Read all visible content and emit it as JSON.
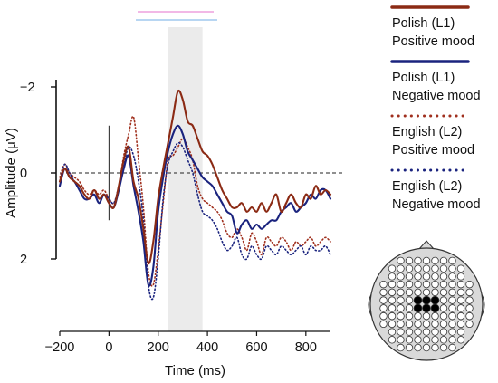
{
  "chart_data": {
    "type": "line",
    "xlabel": "Time (ms)",
    "ylabel": "Amplitude (μV)",
    "xlim": [
      -200,
      900
    ],
    "ylim": [
      2,
      -2
    ],
    "y_inverted": true,
    "x_ticks": [
      -200,
      0,
      200,
      400,
      600,
      800
    ],
    "y_ticks": [
      -2,
      0,
      2
    ],
    "x_tick_labels": [
      "−200",
      "0",
      "200",
      "400",
      "600",
      "800"
    ],
    "y_tick_labels": [
      "−2",
      "0",
      "2"
    ],
    "shaded_window": [
      240,
      380
    ],
    "shaded_color": "#ebebeb",
    "zero_line": "dashed",
    "grid": false,
    "legend_position": "right",
    "x": [
      -200,
      -180,
      -160,
      -140,
      -120,
      -100,
      -80,
      -60,
      -40,
      -20,
      0,
      20,
      40,
      60,
      80,
      100,
      120,
      140,
      160,
      180,
      200,
      220,
      240,
      260,
      280,
      300,
      320,
      340,
      360,
      380,
      400,
      420,
      440,
      460,
      480,
      500,
      520,
      540,
      560,
      580,
      600,
      620,
      640,
      660,
      680,
      700,
      720,
      740,
      760,
      780,
      800,
      820,
      840,
      860,
      880,
      900
    ],
    "series": [
      {
        "name_lines": [
          "Polish (L1)",
          "Positive mood"
        ],
        "color": "#8b2a14",
        "dash": "solid",
        "values": [
          0.2,
          -0.1,
          0.1,
          0.2,
          0.3,
          0.5,
          0.6,
          0.4,
          0.6,
          0.5,
          0.7,
          0.8,
          0.3,
          -0.3,
          -0.6,
          0.2,
          0.6,
          1.3,
          2.1,
          1.6,
          0.6,
          -0.1,
          -0.7,
          -1.3,
          -1.9,
          -1.7,
          -1.2,
          -1.1,
          -0.8,
          -0.5,
          -0.4,
          -0.2,
          0.1,
          0.4,
          0.6,
          0.8,
          0.8,
          0.7,
          0.9,
          0.8,
          0.9,
          0.7,
          0.9,
          0.7,
          0.5,
          0.9,
          0.7,
          0.5,
          0.7,
          0.8,
          0.5,
          0.6,
          0.3,
          0.5,
          0.4,
          0.5
        ]
      },
      {
        "name_lines": [
          "Polish (L1)",
          "Negative mood"
        ],
        "color": "#1a237e",
        "dash": "solid",
        "values": [
          0.3,
          -0.1,
          0.1,
          0.2,
          0.4,
          0.6,
          0.6,
          0.5,
          0.7,
          0.5,
          0.7,
          0.8,
          0.4,
          -0.1,
          -0.4,
          0.3,
          0.9,
          1.6,
          2.6,
          2.2,
          0.9,
          0.1,
          -0.5,
          -0.9,
          -1.1,
          -0.9,
          -0.5,
          -0.3,
          -0.1,
          0.1,
          0.2,
          0.3,
          0.5,
          0.7,
          0.9,
          1.0,
          1.4,
          1.2,
          1.1,
          1.3,
          1.2,
          1.3,
          1.2,
          1.1,
          1.1,
          0.9,
          0.8,
          0.7,
          0.9,
          0.8,
          0.7,
          0.5,
          0.6,
          0.4,
          0.4,
          0.6
        ]
      },
      {
        "name_lines": [
          "English (L2)",
          "Positive mood"
        ],
        "color": "#a0301e",
        "dash": "dotted",
        "values": [
          0.1,
          -0.2,
          0.0,
          0.1,
          0.2,
          0.4,
          0.5,
          0.4,
          0.5,
          0.4,
          0.6,
          0.7,
          0.3,
          -0.4,
          -0.9,
          -1.3,
          -0.3,
          0.8,
          2.3,
          2.6,
          1.8,
          0.7,
          -0.3,
          -0.4,
          -0.6,
          -0.8,
          -0.6,
          -0.3,
          0.3,
          0.6,
          0.7,
          0.8,
          0.9,
          1.1,
          1.4,
          1.5,
          1.3,
          1.5,
          1.8,
          1.4,
          1.6,
          1.9,
          1.5,
          1.6,
          1.7,
          1.5,
          1.6,
          1.8,
          1.6,
          1.7,
          1.6,
          1.5,
          1.7,
          1.6,
          1.5,
          1.6
        ]
      },
      {
        "name_lines": [
          "English (L2)",
          "Negative mood"
        ],
        "color": "#1a237e",
        "dash": "dotted",
        "values": [
          0.2,
          -0.2,
          0.0,
          0.2,
          0.3,
          0.5,
          0.6,
          0.4,
          0.6,
          0.5,
          0.6,
          0.7,
          0.3,
          -0.2,
          -0.6,
          -0.4,
          0.2,
          1.1,
          2.6,
          2.9,
          2.0,
          0.6,
          -0.2,
          -0.5,
          -0.7,
          -0.6,
          -0.3,
          0.0,
          0.5,
          0.9,
          1.0,
          1.1,
          1.3,
          1.6,
          1.8,
          1.7,
          1.5,
          1.9,
          2.0,
          1.7,
          1.9,
          2.0,
          1.7,
          1.8,
          1.9,
          1.7,
          1.8,
          1.9,
          1.8,
          1.7,
          1.9,
          1.7,
          1.8,
          1.8,
          1.7,
          1.9
        ]
      }
    ],
    "headplot": {
      "highlight_color": "#000000",
      "electrode_color": "#ffffff"
    }
  }
}
